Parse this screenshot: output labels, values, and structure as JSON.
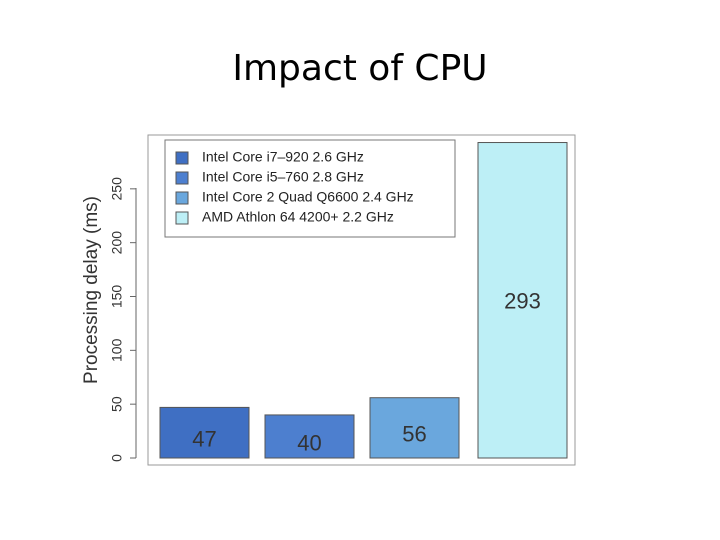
{
  "chart_data": {
    "type": "bar",
    "title": "Impact of CPU",
    "y_label": "Processing delay (ms)",
    "series": [
      {
        "name": "Intel Core i7–920 2.6 GHz",
        "color": "#3f6fc3",
        "values": [
          47
        ]
      },
      {
        "name": "Intel Core i5–760 2.8 GHz",
        "color": "#4d7fcf",
        "values": [
          40
        ]
      },
      {
        "name": "Intel Core 2 Quad Q6600 2.4 GHz",
        "color": "#6aa7dd",
        "values": [
          56
        ]
      },
      {
        "name": "AMD Athlon 64 4200+ 2.2 GHz",
        "color": "#bdeff6",
        "values": [
          293
        ]
      }
    ],
    "ylim": [
      0,
      300
    ],
    "yticks": [
      0,
      50,
      100,
      150,
      200,
      250
    ]
  }
}
